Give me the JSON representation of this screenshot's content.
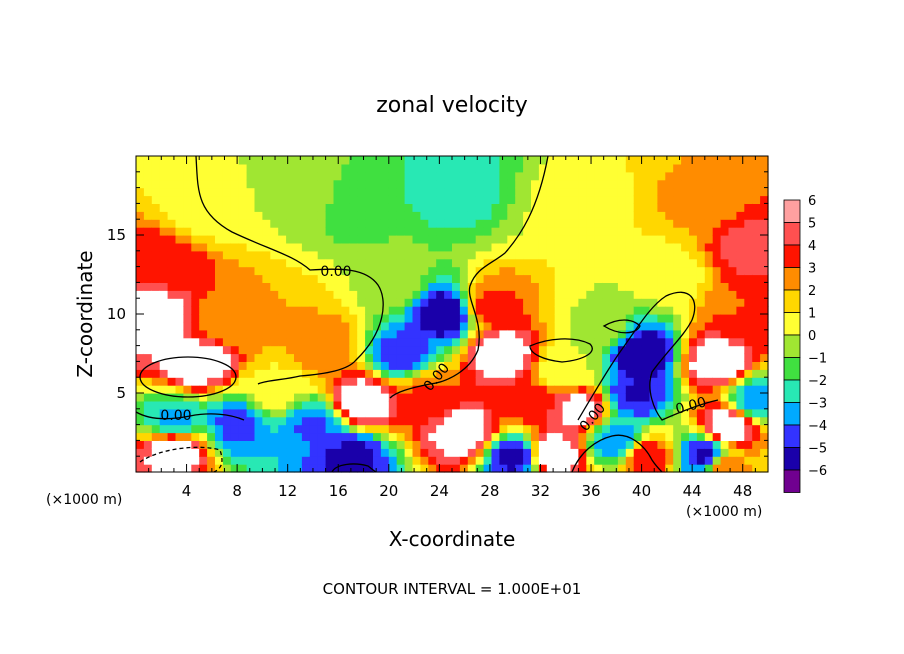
{
  "chart_data": {
    "type": "heatmap",
    "title": "zonal velocity",
    "xlabel": "X-coordinate",
    "ylabel": "Z-coordinate",
    "x_unit_left": "(×1000 m)",
    "x_unit_right": "(×1000 m)",
    "xlim": [
      0,
      50
    ],
    "ylim": [
      0,
      20
    ],
    "x_ticks": [
      4,
      8,
      12,
      16,
      20,
      24,
      28,
      32,
      36,
      40,
      44,
      48
    ],
    "x_tick_labels": [
      "4",
      "8",
      "12",
      "16",
      "20",
      "24",
      "28",
      "32",
      "36",
      "40",
      "44",
      "48"
    ],
    "y_ticks": [
      5,
      10,
      15
    ],
    "y_tick_labels": [
      "5",
      "10",
      "15"
    ],
    "colorbar": {
      "levels": [
        6,
        5,
        4,
        3,
        2,
        1,
        0,
        -1,
        -2,
        -3,
        -4,
        -5,
        -6
      ],
      "labels": [
        "6",
        "5",
        "4",
        "3",
        "2",
        "1",
        "0",
        "−1",
        "−2",
        "−3",
        "−4",
        "−5",
        "−6"
      ],
      "colors": [
        "#ffa0a0",
        "#ff5050",
        "#ff1400",
        "#ff8c00",
        "#ffd700",
        "#ffff33",
        "#a0e632",
        "#40e040",
        "#28e8b4",
        "#00aaff",
        "#3333ff",
        "#1a00aa",
        "#700090"
      ]
    },
    "contour_label": "0.00",
    "contour_interval_text": "CONTOUR INTERVAL = 1.000E+01",
    "fields": [
      {
        "x": 25,
        "z": 18,
        "v": -2.1
      },
      {
        "x": 18,
        "z": 17,
        "v": -1.2
      },
      {
        "x": 6,
        "z": 17,
        "v": 0.6
      },
      {
        "x": 2,
        "z": 13,
        "v": 4.2
      },
      {
        "x": 1,
        "z": 10,
        "v": 6.5
      },
      {
        "x": 7,
        "z": 9.5,
        "v": 2.8
      },
      {
        "x": 5,
        "z": 7,
        "v": 6.5
      },
      {
        "x": 13,
        "z": 9,
        "v": 2.5
      },
      {
        "x": 15,
        "z": 8,
        "v": 3.2
      },
      {
        "x": 20,
        "z": 12,
        "v": 0.4
      },
      {
        "x": 24.5,
        "z": 10,
        "v": -5.5
      },
      {
        "x": 21,
        "z": 7.5,
        "v": -4.0
      },
      {
        "x": 18,
        "z": 4.5,
        "v": 6.5
      },
      {
        "x": 14,
        "z": 3,
        "v": -3.6
      },
      {
        "x": 11,
        "z": 5,
        "v": 1.0
      },
      {
        "x": 8,
        "z": 3,
        "v": -3.8
      },
      {
        "x": 3,
        "z": 1.5,
        "v": 6.5
      },
      {
        "x": 3,
        "z": 3.2,
        "v": -2.8
      },
      {
        "x": 17,
        "z": 1,
        "v": -4.8
      },
      {
        "x": 23,
        "z": 5,
        "v": 3.6
      },
      {
        "x": 26,
        "z": 2.5,
        "v": 6.5
      },
      {
        "x": 29,
        "z": 7.5,
        "v": 6.5
      },
      {
        "x": 28,
        "z": 10.5,
        "v": 3.8
      },
      {
        "x": 31,
        "z": 4.5,
        "v": 4.2
      },
      {
        "x": 30,
        "z": 1,
        "v": -4.8
      },
      {
        "x": 33,
        "z": 1.2,
        "v": 6.5
      },
      {
        "x": 34,
        "z": 6.5,
        "v": 0.6
      },
      {
        "x": 35,
        "z": 4,
        "v": 6.0
      },
      {
        "x": 36.5,
        "z": 9,
        "v": 0.4
      },
      {
        "x": 39.5,
        "z": 5,
        "v": -4.6
      },
      {
        "x": 40,
        "z": 7.5,
        "v": -5.5
      },
      {
        "x": 38,
        "z": 2,
        "v": -3.2
      },
      {
        "x": 40.5,
        "z": 1,
        "v": 4.2
      },
      {
        "x": 42,
        "z": 12.5,
        "v": 0.8
      },
      {
        "x": 46,
        "z": 7,
        "v": 6.5
      },
      {
        "x": 47,
        "z": 3,
        "v": 6.5
      },
      {
        "x": 45,
        "z": 1,
        "v": -4.8
      },
      {
        "x": 46.5,
        "z": 0.3,
        "v": 3.2
      },
      {
        "x": 48.5,
        "z": 14,
        "v": 4.8
      },
      {
        "x": 44,
        "z": 17,
        "v": 2.6
      },
      {
        "x": 48,
        "z": 10,
        "v": 3.5
      },
      {
        "x": 49,
        "z": 4.5,
        "v": -3.0
      },
      {
        "x": 35,
        "z": 17,
        "v": 0.9
      },
      {
        "x": 13,
        "z": 18,
        "v": 0.2
      }
    ]
  }
}
